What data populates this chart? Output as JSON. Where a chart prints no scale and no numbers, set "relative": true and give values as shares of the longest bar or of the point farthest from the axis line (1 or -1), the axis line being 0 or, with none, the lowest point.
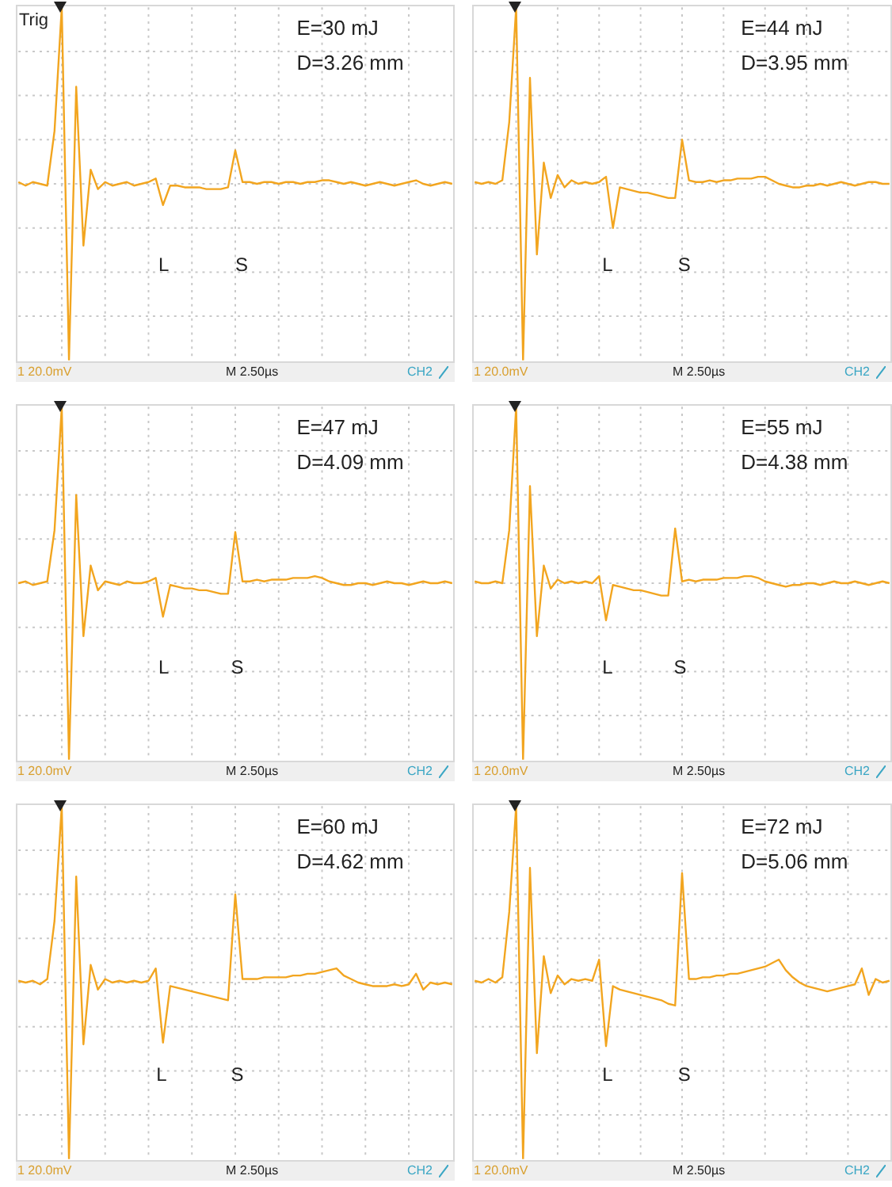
{
  "chart_data": [
    {
      "type": "line",
      "relative": true,
      "grid": true,
      "color": "#f2a51f",
      "categories": [
        null,
        null,
        null,
        null,
        null,
        null,
        null,
        null,
        null,
        null,
        null,
        null,
        null,
        null,
        null,
        null,
        null,
        null,
        null,
        null,
        null,
        null,
        null,
        null,
        null,
        null,
        null,
        null,
        null,
        null,
        null,
        null,
        null,
        null,
        null,
        null,
        null,
        null,
        null,
        null,
        null,
        null,
        null,
        null,
        null,
        null,
        null,
        null,
        null,
        null,
        null,
        null,
        null,
        null,
        null,
        null,
        null,
        null,
        null,
        null,
        null
      ],
      "values": [
        0.01,
        -0.01,
        0.01,
        0,
        -0.01,
        0.3,
        1,
        -1,
        0.55,
        -0.35,
        0.08,
        -0.03,
        0.01,
        -0.01,
        0,
        0.01,
        -0.01,
        0,
        0.01,
        0.03,
        -0.12,
        -0.01,
        -0.01,
        -0.02,
        -0.02,
        -0.02,
        -0.03,
        -0.03,
        -0.03,
        -0.02,
        0.19,
        0.01,
        0.01,
        0,
        0.01,
        0.01,
        0,
        0.01,
        0.01,
        0,
        0.01,
        0.01,
        0.02,
        0.02,
        0.01,
        0,
        0.01,
        0,
        -0.01,
        0,
        0.01,
        0,
        -0.01,
        0,
        0.01,
        0.02,
        0,
        -0.01,
        0,
        0.01,
        0
      ],
      "annotations": [
        "E=30 mJ",
        "D=3.26 mm",
        "L",
        "S",
        "1 20.0mV",
        "M 2.50µs",
        "CH2",
        "Trig"
      ]
    },
    {
      "type": "line",
      "relative": true,
      "grid": true,
      "color": "#f2a51f",
      "categories": [
        null,
        null,
        null,
        null,
        null,
        null,
        null,
        null,
        null,
        null,
        null,
        null,
        null,
        null,
        null,
        null,
        null,
        null,
        null,
        null,
        null,
        null,
        null,
        null,
        null,
        null,
        null,
        null,
        null,
        null,
        null,
        null,
        null,
        null,
        null,
        null,
        null,
        null,
        null,
        null,
        null,
        null,
        null,
        null,
        null,
        null,
        null,
        null,
        null,
        null,
        null,
        null,
        null,
        null,
        null,
        null,
        null,
        null,
        null,
        null,
        null
      ],
      "values": [
        0.01,
        0,
        0.01,
        0,
        0.02,
        0.35,
        1,
        -1,
        0.6,
        -0.4,
        0.12,
        -0.08,
        0.05,
        -0.02,
        0.02,
        0,
        0.01,
        0,
        0.01,
        0.04,
        -0.25,
        -0.02,
        -0.03,
        -0.04,
        -0.05,
        -0.05,
        -0.06,
        -0.07,
        -0.08,
        -0.08,
        0.25,
        0.02,
        0.01,
        0.01,
        0.02,
        0.01,
        0.02,
        0.02,
        0.03,
        0.03,
        0.03,
        0.04,
        0.04,
        0.02,
        0,
        -0.01,
        -0.02,
        -0.02,
        -0.01,
        -0.01,
        0,
        -0.01,
        0,
        0.01,
        0,
        -0.01,
        0,
        0.01,
        0.01,
        0,
        0
      ],
      "annotations": [
        "E=44 mJ",
        "D=3.95 mm",
        "L",
        "S",
        "1 20.0mV",
        "M 2.50µs",
        "CH2"
      ]
    },
    {
      "type": "line",
      "relative": true,
      "grid": true,
      "color": "#f2a51f",
      "categories": [
        null,
        null,
        null,
        null,
        null,
        null,
        null,
        null,
        null,
        null,
        null,
        null,
        null,
        null,
        null,
        null,
        null,
        null,
        null,
        null,
        null,
        null,
        null,
        null,
        null,
        null,
        null,
        null,
        null,
        null,
        null,
        null,
        null,
        null,
        null,
        null,
        null,
        null,
        null,
        null,
        null,
        null,
        null,
        null,
        null,
        null,
        null,
        null,
        null,
        null,
        null,
        null,
        null,
        null,
        null,
        null,
        null,
        null,
        null,
        null,
        null
      ],
      "values": [
        0,
        0.01,
        -0.01,
        0,
        0.01,
        0.3,
        1,
        -1,
        0.5,
        -0.3,
        0.1,
        -0.04,
        0.01,
        0,
        -0.01,
        0.01,
        0,
        0,
        0.01,
        0.03,
        -0.19,
        -0.01,
        -0.02,
        -0.03,
        -0.03,
        -0.04,
        -0.04,
        -0.05,
        -0.06,
        -0.06,
        0.29,
        0.01,
        0.01,
        0.02,
        0.01,
        0.02,
        0.02,
        0.02,
        0.03,
        0.03,
        0.03,
        0.04,
        0.03,
        0.01,
        0,
        -0.01,
        -0.01,
        0,
        0,
        -0.01,
        0,
        0.01,
        0,
        0,
        -0.01,
        0,
        0.01,
        0,
        0,
        0.01,
        0
      ],
      "annotations": [
        "E=47 mJ",
        "D=4.09 mm",
        "L",
        "S",
        "1 20.0mV",
        "M 2.50µs",
        "CH2"
      ]
    },
    {
      "type": "line",
      "relative": true,
      "grid": true,
      "color": "#f2a51f",
      "categories": [
        null,
        null,
        null,
        null,
        null,
        null,
        null,
        null,
        null,
        null,
        null,
        null,
        null,
        null,
        null,
        null,
        null,
        null,
        null,
        null,
        null,
        null,
        null,
        null,
        null,
        null,
        null,
        null,
        null,
        null,
        null,
        null,
        null,
        null,
        null,
        null,
        null,
        null,
        null,
        null,
        null,
        null,
        null,
        null,
        null,
        null,
        null,
        null,
        null,
        null,
        null,
        null,
        null,
        null,
        null,
        null,
        null,
        null,
        null,
        null,
        null
      ],
      "values": [
        0.01,
        0,
        0,
        0.01,
        0,
        0.3,
        1,
        -1,
        0.55,
        -0.3,
        0.1,
        -0.03,
        0.02,
        0,
        0.01,
        0,
        0.01,
        0,
        0.04,
        -0.21,
        -0.01,
        -0.02,
        -0.03,
        -0.04,
        -0.04,
        -0.05,
        -0.06,
        -0.07,
        -0.07,
        0.31,
        0.01,
        0.02,
        0.01,
        0.02,
        0.02,
        0.02,
        0.03,
        0.03,
        0.03,
        0.04,
        0.04,
        0.03,
        0.01,
        0,
        -0.01,
        -0.02,
        -0.01,
        -0.01,
        0,
        0,
        -0.01,
        0,
        0.01,
        0,
        0,
        0.01,
        0,
        -0.01,
        0,
        0.01,
        0
      ],
      "annotations": [
        "E=55 mJ",
        "D=4.38 mm",
        "L",
        "S",
        "1 20.0mV",
        "M 2.50µs",
        "CH2"
      ]
    },
    {
      "type": "line",
      "relative": true,
      "grid": true,
      "color": "#f2a51f",
      "categories": [
        null,
        null,
        null,
        null,
        null,
        null,
        null,
        null,
        null,
        null,
        null,
        null,
        null,
        null,
        null,
        null,
        null,
        null,
        null,
        null,
        null,
        null,
        null,
        null,
        null,
        null,
        null,
        null,
        null,
        null,
        null,
        null,
        null,
        null,
        null,
        null,
        null,
        null,
        null,
        null,
        null,
        null,
        null,
        null,
        null,
        null,
        null,
        null,
        null,
        null,
        null,
        null,
        null,
        null,
        null,
        null,
        null,
        null,
        null,
        null,
        null
      ],
      "values": [
        0.01,
        0,
        0.01,
        -0.01,
        0.02,
        0.35,
        1,
        -1,
        0.6,
        -0.35,
        0.1,
        -0.04,
        0.02,
        0,
        0.01,
        0,
        0.01,
        0,
        0.01,
        0.08,
        -0.34,
        -0.02,
        -0.03,
        -0.04,
        -0.05,
        -0.06,
        -0.07,
        -0.08,
        -0.09,
        -0.1,
        0.5,
        0.02,
        0.02,
        0.02,
        0.03,
        0.03,
        0.03,
        0.03,
        0.04,
        0.04,
        0.05,
        0.05,
        0.06,
        0.07,
        0.08,
        0.04,
        0.02,
        0,
        -0.01,
        -0.02,
        -0.02,
        -0.02,
        -0.01,
        -0.02,
        -0.01,
        0.05,
        -0.04,
        0,
        -0.01,
        0,
        -0.01
      ],
      "annotations": [
        "E=60 mJ",
        "D=4.62 mm",
        "L",
        "S",
        "1 20.0mV",
        "M 2.50µs",
        "CH2"
      ]
    },
    {
      "type": "line",
      "relative": true,
      "grid": true,
      "color": "#f2a51f",
      "categories": [
        null,
        null,
        null,
        null,
        null,
        null,
        null,
        null,
        null,
        null,
        null,
        null,
        null,
        null,
        null,
        null,
        null,
        null,
        null,
        null,
        null,
        null,
        null,
        null,
        null,
        null,
        null,
        null,
        null,
        null,
        null,
        null,
        null,
        null,
        null,
        null,
        null,
        null,
        null,
        null,
        null,
        null,
        null,
        null,
        null,
        null,
        null,
        null,
        null,
        null,
        null,
        null,
        null,
        null,
        null,
        null,
        null,
        null,
        null,
        null,
        null
      ],
      "values": [
        0.01,
        0,
        0.02,
        0,
        0.03,
        0.4,
        1,
        -1,
        0.65,
        -0.4,
        0.15,
        -0.06,
        0.04,
        -0.01,
        0.02,
        0.01,
        0.02,
        0.01,
        0.13,
        -0.36,
        -0.02,
        -0.04,
        -0.05,
        -0.06,
        -0.07,
        -0.08,
        -0.09,
        -0.1,
        -0.12,
        -0.13,
        0.62,
        0.02,
        0.02,
        0.03,
        0.03,
        0.04,
        0.04,
        0.05,
        0.05,
        0.06,
        0.07,
        0.08,
        0.09,
        0.11,
        0.13,
        0.07,
        0.03,
        0,
        -0.02,
        -0.03,
        -0.04,
        -0.05,
        -0.04,
        -0.03,
        -0.02,
        -0.01,
        0.08,
        -0.07,
        0.02,
        0,
        0.01
      ],
      "annotations": [
        "E=72 mJ",
        "D=5.06 mm",
        "L",
        "S",
        "1 20.0mV",
        "M 2.50µs",
        "CH2"
      ]
    }
  ]
}
